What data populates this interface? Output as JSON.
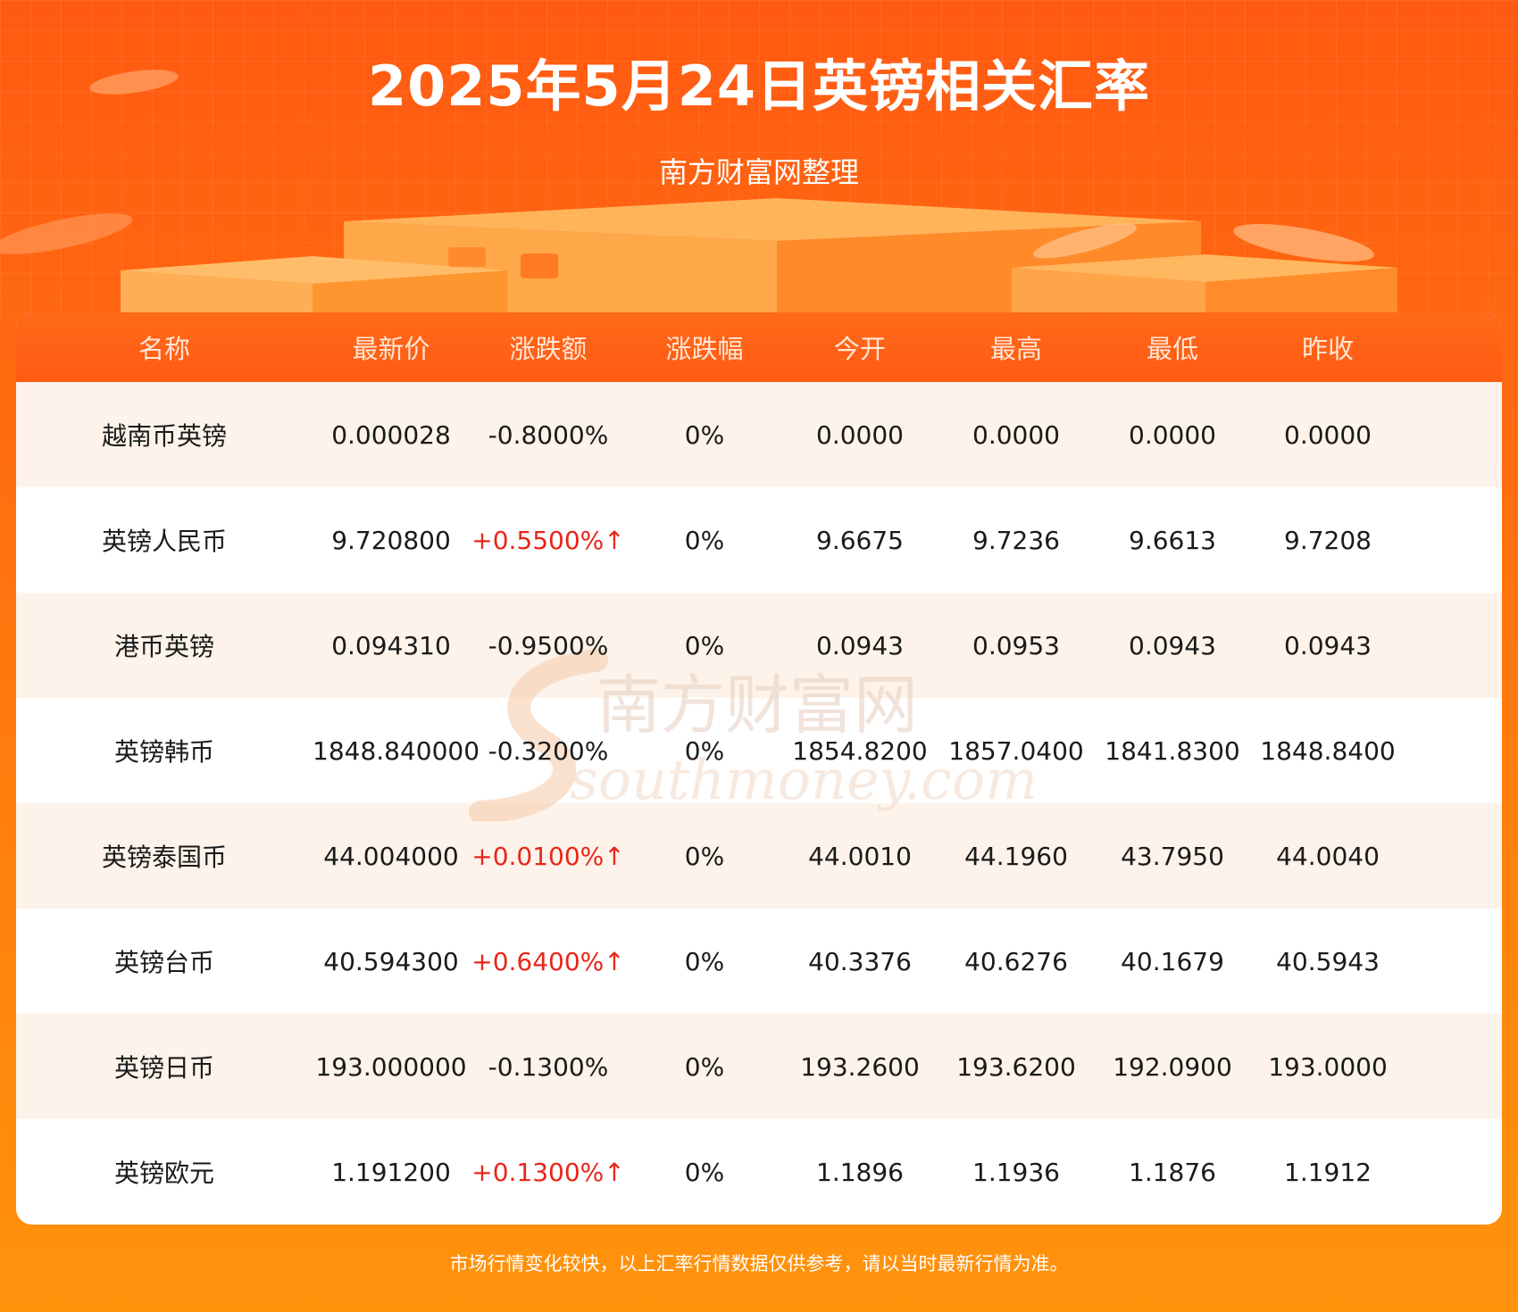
{
  "header": {
    "title": "2025年5月24日英镑相关汇率",
    "subtitle": "南方财富网整理"
  },
  "table": {
    "columns": [
      "名称",
      "最新价",
      "涨跌额",
      "涨跌幅",
      "今开",
      "最高",
      "最低",
      "昨收"
    ],
    "rows": [
      {
        "name": "越南币英镑",
        "latest": "0.000028",
        "change": "-0.8000%",
        "pct": "0%",
        "open": "0.0000",
        "high": "0.0000",
        "low": "0.0000",
        "prev": "0.0000",
        "up": false
      },
      {
        "name": "英镑人民币",
        "latest": "9.720800",
        "change": "+0.5500%↑",
        "pct": "0%",
        "open": "9.6675",
        "high": "9.7236",
        "low": "9.6613",
        "prev": "9.7208",
        "up": true
      },
      {
        "name": "港币英镑",
        "latest": "0.094310",
        "change": "-0.9500%",
        "pct": "0%",
        "open": "0.0943",
        "high": "0.0953",
        "low": "0.0943",
        "prev": "0.0943",
        "up": false
      },
      {
        "name": "英镑韩币",
        "latest": "1848.840000",
        "change": "-0.3200%",
        "pct": "0%",
        "open": "1854.8200",
        "high": "1857.0400",
        "low": "1841.8300",
        "prev": "1848.8400",
        "up": false
      },
      {
        "name": "英镑泰国币",
        "latest": "44.004000",
        "change": "+0.0100%↑",
        "pct": "0%",
        "open": "44.0010",
        "high": "44.1960",
        "low": "43.7950",
        "prev": "44.0040",
        "up": true
      },
      {
        "name": "英镑台币",
        "latest": "40.594300",
        "change": "+0.6400%↑",
        "pct": "0%",
        "open": "40.3376",
        "high": "40.6276",
        "low": "40.1679",
        "prev": "40.5943",
        "up": true
      },
      {
        "name": "英镑日币",
        "latest": "193.000000",
        "change": "-0.1300%",
        "pct": "0%",
        "open": "193.2600",
        "high": "193.6200",
        "low": "192.0900",
        "prev": "193.0000",
        "up": false
      },
      {
        "name": "英镑欧元",
        "latest": "1.191200",
        "change": "+0.1300%↑",
        "pct": "0%",
        "open": "1.1896",
        "high": "1.1936",
        "low": "1.1876",
        "prev": "1.1912",
        "up": true
      }
    ]
  },
  "watermark": {
    "cn": "南方财富网",
    "en": "southmoney.com"
  },
  "footer": {
    "note": "市场行情变化较快，以上汇率行情数据仅供参考，请以当时最新行情为准。"
  },
  "colors": {
    "background": "#ff6a10",
    "header_row": "#ff5a14",
    "row_alt": "#fdf3ea",
    "up": "#e8261a"
  }
}
